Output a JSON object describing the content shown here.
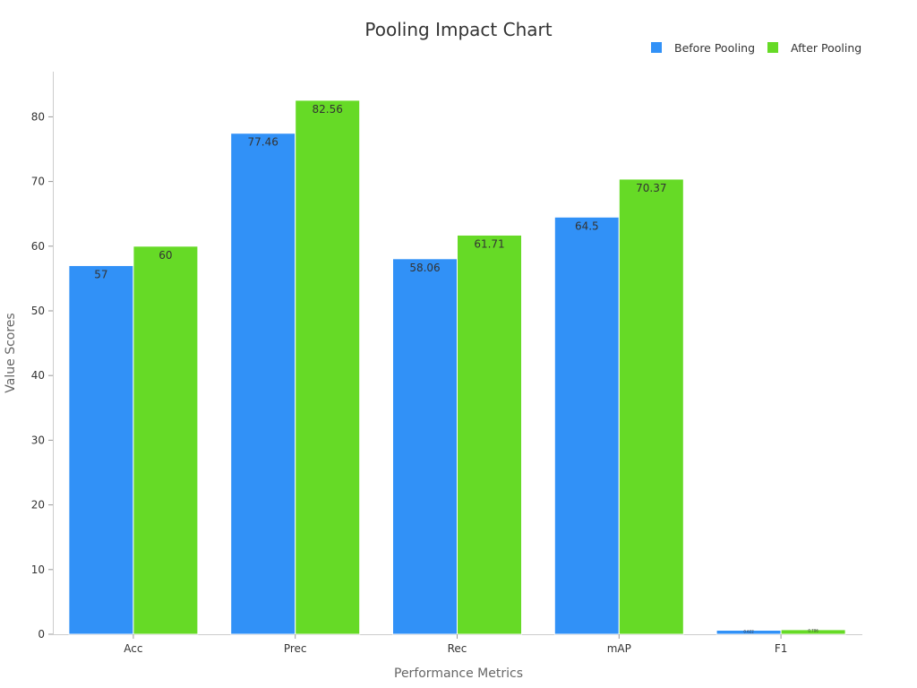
{
  "chart_data": {
    "type": "bar",
    "title": "Pooling Impact Chart",
    "xlabel": "Performance Metrics",
    "ylabel": "Value Scores",
    "categories": [
      "Acc",
      "Prec",
      "Rec",
      "mAP",
      "F1"
    ],
    "series": [
      {
        "name": "Before Pooling",
        "color": "#3191f7",
        "values": [
          57,
          77.46,
          58.06,
          64.5,
          0.622
        ],
        "labels": [
          "57",
          "77.46",
          "58.06",
          "64.5",
          "0.622"
        ]
      },
      {
        "name": "After Pooling",
        "color": "#66da26",
        "values": [
          60,
          82.56,
          61.71,
          70.37,
          0.706
        ],
        "labels": [
          "60",
          "82.56",
          "61.71",
          "70.37",
          "0.706"
        ]
      }
    ],
    "ylim": [
      0,
      87
    ],
    "yticks": [
      "0",
      "10",
      "20",
      "30",
      "40",
      "50",
      "60",
      "70",
      "80"
    ],
    "grid": false,
    "legend_position": "top-right"
  }
}
